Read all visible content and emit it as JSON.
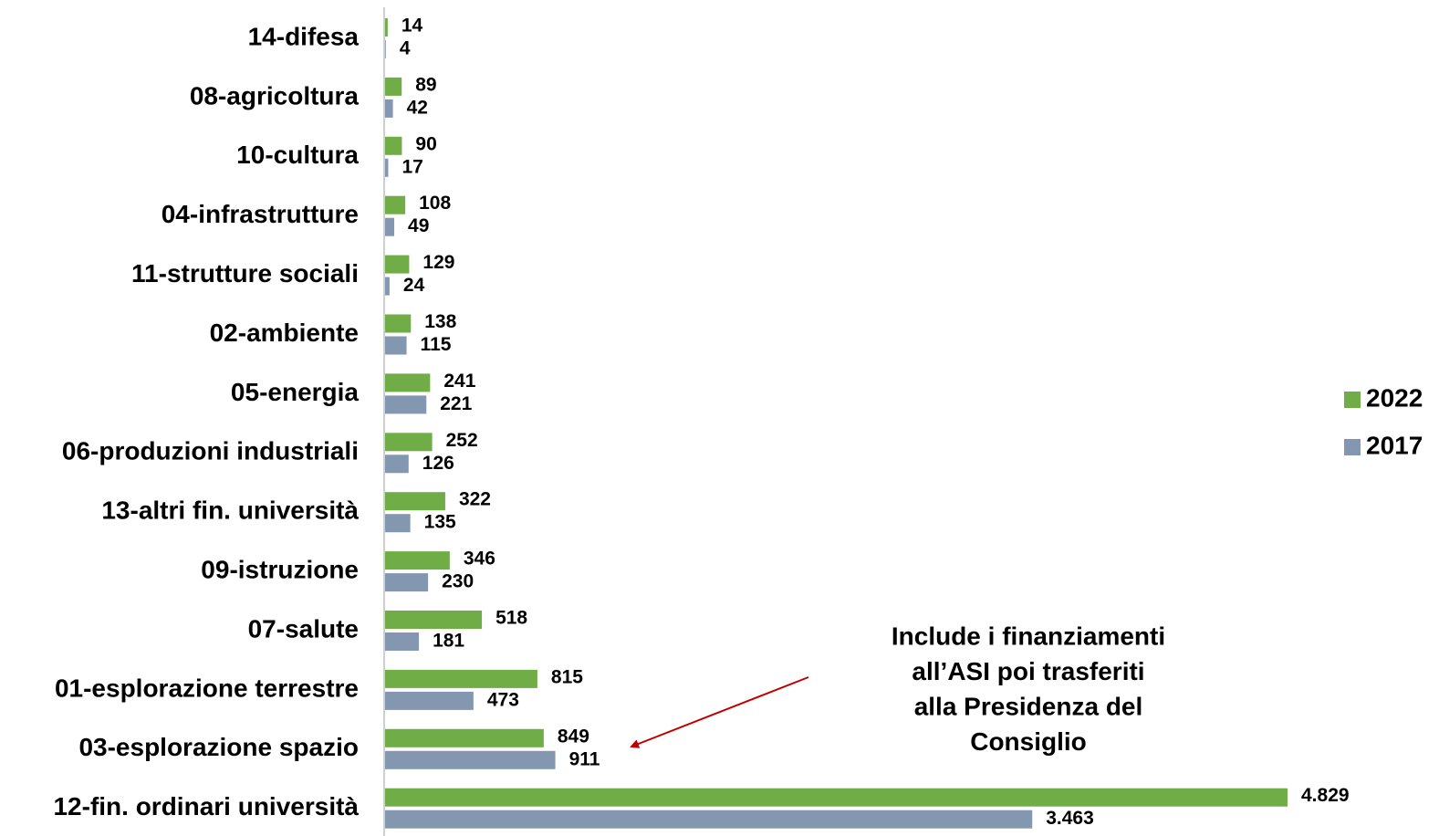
{
  "chart_data": {
    "type": "hbar",
    "categories": [
      "14-difesa",
      "08-agricoltura",
      "10-cultura",
      "04-infrastrutture",
      "11-strutture sociali",
      "02-ambiente",
      "05-energia",
      "06-produzioni industriali",
      "13-altri fin. università",
      "09-istruzione",
      "07-salute",
      "01-esplorazione terrestre",
      "03-esplorazione spazio",
      "12-fin. ordinari università"
    ],
    "series": [
      {
        "name": "2022",
        "color": "#70ad47",
        "values": [
          14,
          89,
          90,
          108,
          129,
          138,
          241,
          252,
          322,
          346,
          518,
          815,
          849,
          4829
        ],
        "value_labels": [
          "14",
          "89",
          "90",
          "108",
          "129",
          "138",
          "241",
          "252",
          "322",
          "346",
          "518",
          "815",
          "849",
          "4.829"
        ]
      },
      {
        "name": "2017",
        "color": "#8497b0",
        "values": [
          4,
          42,
          17,
          49,
          24,
          115,
          221,
          126,
          135,
          230,
          181,
          473,
          911,
          3463
        ],
        "value_labels": [
          "4",
          "42",
          "17",
          "49",
          "24",
          "115",
          "221",
          "126",
          "135",
          "230",
          "181",
          "473",
          "911",
          "3.463"
        ]
      }
    ],
    "annotation": [
      "Include i finanziamenti",
      "all’ASI poi trasferiti",
      "alla Presidenza del",
      "Consiglio"
    ],
    "legend": "right"
  }
}
